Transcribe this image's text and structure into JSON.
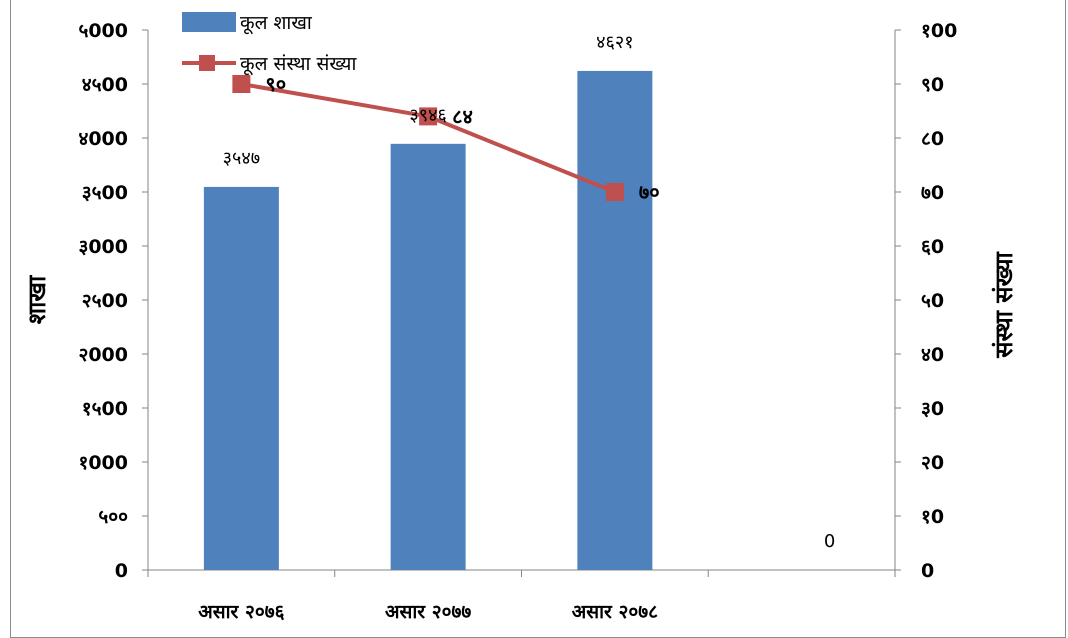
{
  "chart_data": {
    "type": "bar",
    "categories": [
      "असार २०७६",
      "असार २०७७",
      "असार २०७८",
      ""
    ],
    "series": [
      {
        "name": "कूल शाखा",
        "type": "bar",
        "axis": "left",
        "color": "#4f81bd",
        "values": [
          3547,
          3946,
          4621,
          null
        ],
        "labels": [
          "३५४७",
          "३९४६",
          "४६२१",
          ""
        ]
      },
      {
        "name": "कूल संस्था संख्या",
        "type": "line",
        "axis": "right",
        "color": "#c0504d",
        "values": [
          90,
          84,
          70,
          null
        ],
        "labels": [
          "९०",
          "८४",
          "७०",
          "0"
        ]
      }
    ],
    "ylabel": "शाखा",
    "y2label": "संस्था संख्या",
    "ylim": [
      0,
      5000
    ],
    "y2lim": [
      0,
      100
    ],
    "yticks": [
      "0",
      "५००",
      "१000",
      "१५00",
      "२000",
      "२५00",
      "३000",
      "३५00",
      "४000",
      "४५00",
      "५000"
    ],
    "y2ticks": [
      "0",
      "१0",
      "२0",
      "३0",
      "४0",
      "५0",
      "६0",
      "७0",
      "८0",
      "९0",
      "१00"
    ],
    "legend": "top-left",
    "grid": false
  }
}
